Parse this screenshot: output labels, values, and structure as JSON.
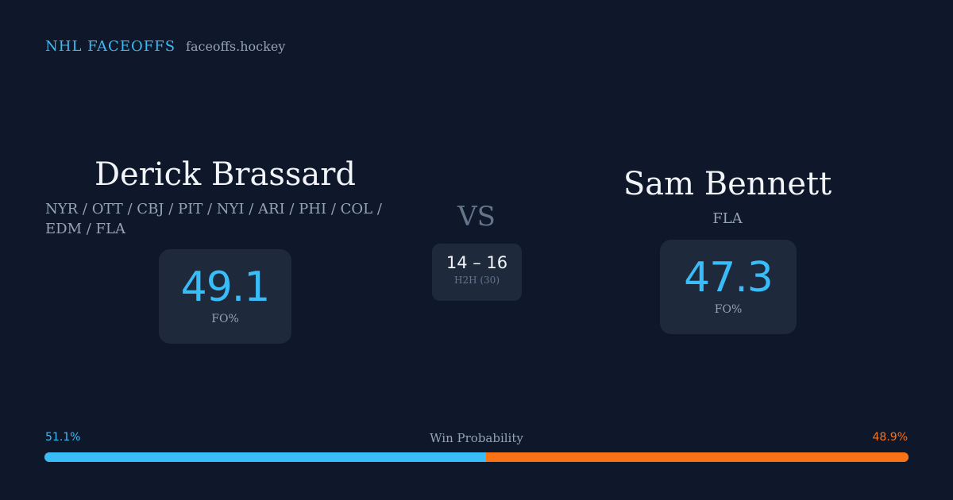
{
  "brand": {
    "title": "NHL FACEOFFS",
    "domain": "faceoffs.hockey"
  },
  "player1": {
    "name": "Derick Brassard",
    "teams": "NYR / OTT / CBJ / PIT / NYI / ARI / PHI / COL / EDM / FLA",
    "fo_pct": "49.1",
    "fo_label": "FO%"
  },
  "player2": {
    "name": "Sam Bennett",
    "teams": "FLA",
    "fo_pct": "47.3",
    "fo_label": "FO%"
  },
  "vs": "VS",
  "h2h": {
    "score": "14 – 16",
    "label": "H2H (30)"
  },
  "win_probability": {
    "title": "Win Probability",
    "left_label": "51.1%",
    "right_label": "48.9%",
    "left_fraction": 0.511,
    "left_color": "#38bdf8",
    "right_color": "#f97316"
  }
}
